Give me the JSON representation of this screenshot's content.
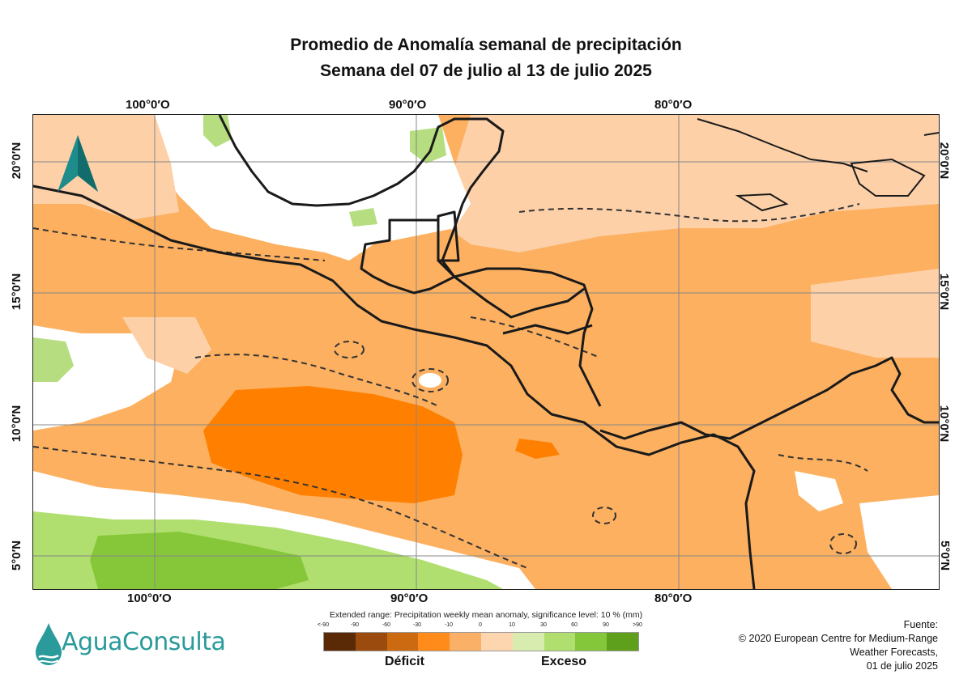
{
  "title": {
    "line1": "Promedio de Anomalía semanal de precipitación",
    "line2": "Semana del 07 de julio al 13 de julio 2025"
  },
  "map": {
    "longitude_labels": [
      "100°0′O",
      "90°0′O",
      "80°0′O"
    ],
    "latitude_labels": [
      "20°0′N",
      "15°0′N",
      "10°0′N",
      "5°0′N"
    ],
    "north_arrow_icon": "north-arrow-icon",
    "region": "Central America and eastern tropical Pacific",
    "colors": {
      "deficit_strong": "#ff8000",
      "deficit_moderate": "#fcb060",
      "deficit_weak": "#fdd0a8",
      "excess_weak": "#d6edb0",
      "excess_moderate": "#a8d860",
      "excess_strong": "#86c73a",
      "coastline": "#1a1a1a",
      "significance_contour": "#333333"
    }
  },
  "legend": {
    "caption": "Extended range: Precipitation weekly mean anomaly, significance level: 10 % (mm)",
    "ticks": [
      "<-90",
      "-90",
      "-60",
      "-30",
      "-10",
      "0",
      "10",
      "30",
      "60",
      "90",
      ">90"
    ],
    "colors": [
      "#5a2a07",
      "#9a4b0d",
      "#cc6a12",
      "#ff8c1a",
      "#fbb068",
      "#fdd6b0",
      "#d8ecb0",
      "#b0df70",
      "#84c73a",
      "#5e9f1c",
      "#4a7a10"
    ],
    "deficit_label": "Déficit",
    "excess_label": "Exceso"
  },
  "source": {
    "line1": "Fuente:",
    "line2": "© 2020 European Centre for Medium-Range",
    "line3": "Weather Forecasts,",
    "line4": "01 de julio 2025"
  },
  "brand": {
    "name": "AguaConsulta",
    "logo_icon": "water-drop-logo-icon"
  }
}
